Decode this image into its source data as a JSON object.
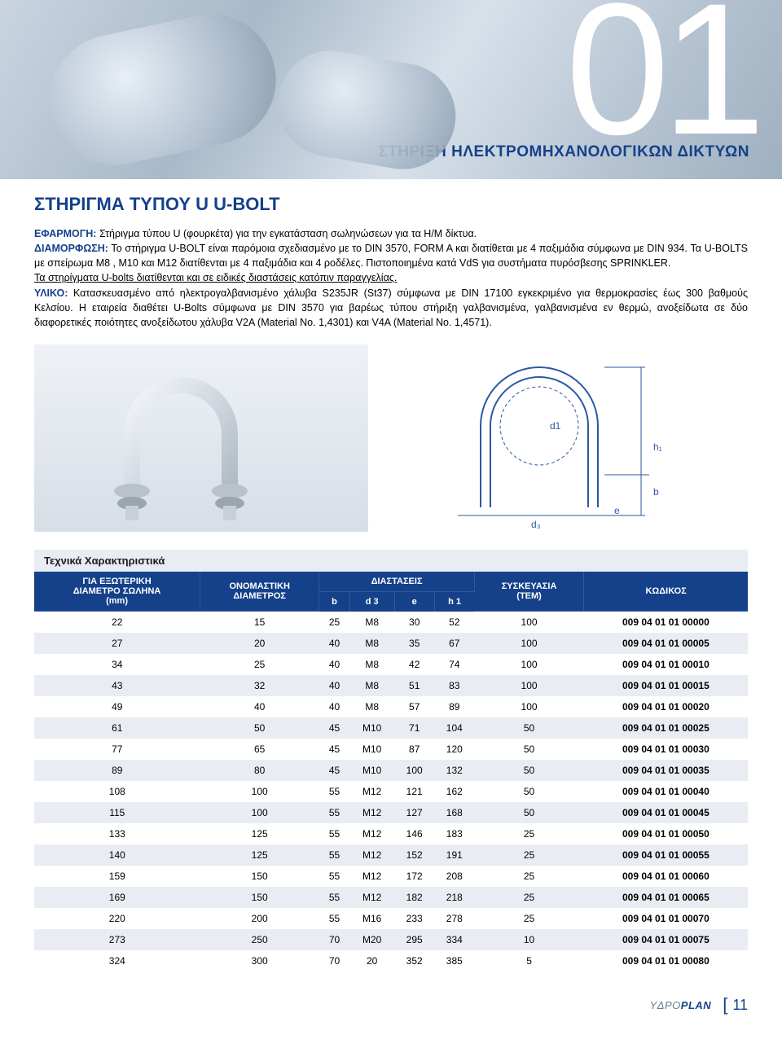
{
  "hero": {
    "big_number": "01",
    "section_title": "ΣΤΗΡΙΞΗ ΗΛΕΚΤΡΟΜΗΧΑΝΟΛΟΓΙΚΩΝ ΔΙΚΤΥΩΝ"
  },
  "product": {
    "title": "ΣΤΗΡΙΓΜΑ ΤΥΠΟΥ U U-BOLT",
    "ef_label": "ΕΦΑΡΜΟΓΗ:",
    "ef_text": " Στήριγμα τύπου U (φουρκέτα) για την εγκατάσταση σωληνώσεων για τα Η/Μ δίκτυα.",
    "dia_label": "ΔΙΑΜΟΡΦΩΣΗ:",
    "dia_text": " Το στήριγμα U-BOLT είναι παρόμοια σχεδιασμένο με το DIN 3570, FORM A και διατίθεται με 4 παξιμάδια σύμφωνα με DIN 934. Τα U-BOLTS με σπείρωμα Μ8 , Μ10 και Μ12 διατίθενται με 4 παξιμάδια και 4 ροδέλες. Πιστοποιημένα κατά VdS για συστήματα πυρόσβεσης SPRINKLER.",
    "note_line": "Τα στηρίγματα U-bolts διατίθενται και σε ειδικές διαστάσεις κατόπιν παραγγελίας.",
    "yl_label": "ΥΛΙΚΟ:",
    "yl_text": " Κατασκευασμένο από ηλεκτρογαλβανισμένο χάλυβα S235JR (St37) σύμφωνα με DIN 17100 εγκεκριμένο για θερμοκρασίες έως 300 βαθμούς Κελσίου. Η εταιρεία διαθέτει U-Bolts σύμφωνα με DIN 3570 για βαρέως τύπου στήριξη γαλβανισμένα, γαλβανισμένα εν θερμώ, ανοξείδωτα  σε δύο διαφορετικές ποιότητες ανοξείδωτου χάλυβα V2A (Material No. 1,4301) και V4A (Material No. 1,4571)."
  },
  "diagram_labels": {
    "d1": "d1",
    "d3": "d₃",
    "h1": "h₁",
    "b": "b",
    "e": "e"
  },
  "table": {
    "tech_title": "Τεχνικά Χαρακτηριστικά",
    "headers": {
      "col1_l1": "ΓΙΑ ΕΞΩΤΕΡΙΚΗ",
      "col1_l2": "ΔΙΑΜΕΤΡΟ ΣΩΛΗΝΑ",
      "col1_l3": "(mm)",
      "col2_l1": "ΟΝΟΜΑΣΤΙΚΗ",
      "col2_l2": "ΔΙΑΜΕΤΡΟΣ",
      "dim_group": "ΔΙΑΣΤΑΣΕΙΣ",
      "b": "b",
      "d3": "d 3",
      "e": "e",
      "h1": "h 1",
      "pack_l1": "ΣΥΣΚΕΥΑΣΙΑ",
      "pack_l2": "(TEM)",
      "code": "ΚΩΔΙΚΟΣ"
    },
    "rows": [
      {
        "od": "22",
        "dn": "15",
        "b": "25",
        "d3": "M8",
        "e": "30",
        "h1": "52",
        "pack": "100",
        "code": "009 04 01 01 00000"
      },
      {
        "od": "27",
        "dn": "20",
        "b": "40",
        "d3": "M8",
        "e": "35",
        "h1": "67",
        "pack": "100",
        "code": "009 04 01 01 00005"
      },
      {
        "od": "34",
        "dn": "25",
        "b": "40",
        "d3": "M8",
        "e": "42",
        "h1": "74",
        "pack": "100",
        "code": "009 04 01 01 00010"
      },
      {
        "od": "43",
        "dn": "32",
        "b": "40",
        "d3": "M8",
        "e": "51",
        "h1": "83",
        "pack": "100",
        "code": "009 04 01 01 00015"
      },
      {
        "od": "49",
        "dn": "40",
        "b": "40",
        "d3": "M8",
        "e": "57",
        "h1": "89",
        "pack": "100",
        "code": "009 04 01 01 00020"
      },
      {
        "od": "61",
        "dn": "50",
        "b": "45",
        "d3": "M10",
        "e": "71",
        "h1": "104",
        "pack": "50",
        "code": "009 04 01 01 00025"
      },
      {
        "od": "77",
        "dn": "65",
        "b": "45",
        "d3": "M10",
        "e": "87",
        "h1": "120",
        "pack": "50",
        "code": "009 04 01 01 00030"
      },
      {
        "od": "89",
        "dn": "80",
        "b": "45",
        "d3": "M10",
        "e": "100",
        "h1": "132",
        "pack": "50",
        "code": "009 04 01 01 00035"
      },
      {
        "od": "108",
        "dn": "100",
        "b": "55",
        "d3": "M12",
        "e": "121",
        "h1": "162",
        "pack": "50",
        "code": "009 04 01 01 00040"
      },
      {
        "od": "115",
        "dn": "100",
        "b": "55",
        "d3": "M12",
        "e": "127",
        "h1": "168",
        "pack": "50",
        "code": "009 04 01 01 00045"
      },
      {
        "od": "133",
        "dn": "125",
        "b": "55",
        "d3": "M12",
        "e": "146",
        "h1": "183",
        "pack": "25",
        "code": "009 04 01 01 00050"
      },
      {
        "od": "140",
        "dn": "125",
        "b": "55",
        "d3": "M12",
        "e": "152",
        "h1": "191",
        "pack": "25",
        "code": "009 04 01 01 00055"
      },
      {
        "od": "159",
        "dn": "150",
        "b": "55",
        "d3": "M12",
        "e": "172",
        "h1": "208",
        "pack": "25",
        "code": "009 04 01 01 00060"
      },
      {
        "od": "169",
        "dn": "150",
        "b": "55",
        "d3": "M12",
        "e": "182",
        "h1": "218",
        "pack": "25",
        "code": "009 04 01 01 00065"
      },
      {
        "od": "220",
        "dn": "200",
        "b": "55",
        "d3": "M16",
        "e": "233",
        "h1": "278",
        "pack": "25",
        "code": "009 04 01 01 00070"
      },
      {
        "od": "273",
        "dn": "250",
        "b": "70",
        "d3": "M20",
        "e": "295",
        "h1": "334",
        "pack": "10",
        "code": "009 04 01 01 00075"
      },
      {
        "od": "324",
        "dn": "300",
        "b": "70",
        "d3": "20",
        "e": "352",
        "h1": "385",
        "pack": "5",
        "code": "009 04 01 01 00080"
      }
    ]
  },
  "footer": {
    "logo_pre": "Y",
    "logo_mid": "ΔΡΟ",
    "logo_post": "PLAN",
    "page": "11"
  },
  "colors": {
    "brand_blue": "#14418a",
    "row_alt": "#e9edf3",
    "diagram_stroke": "#2a5aa0",
    "bg": "#ffffff"
  }
}
